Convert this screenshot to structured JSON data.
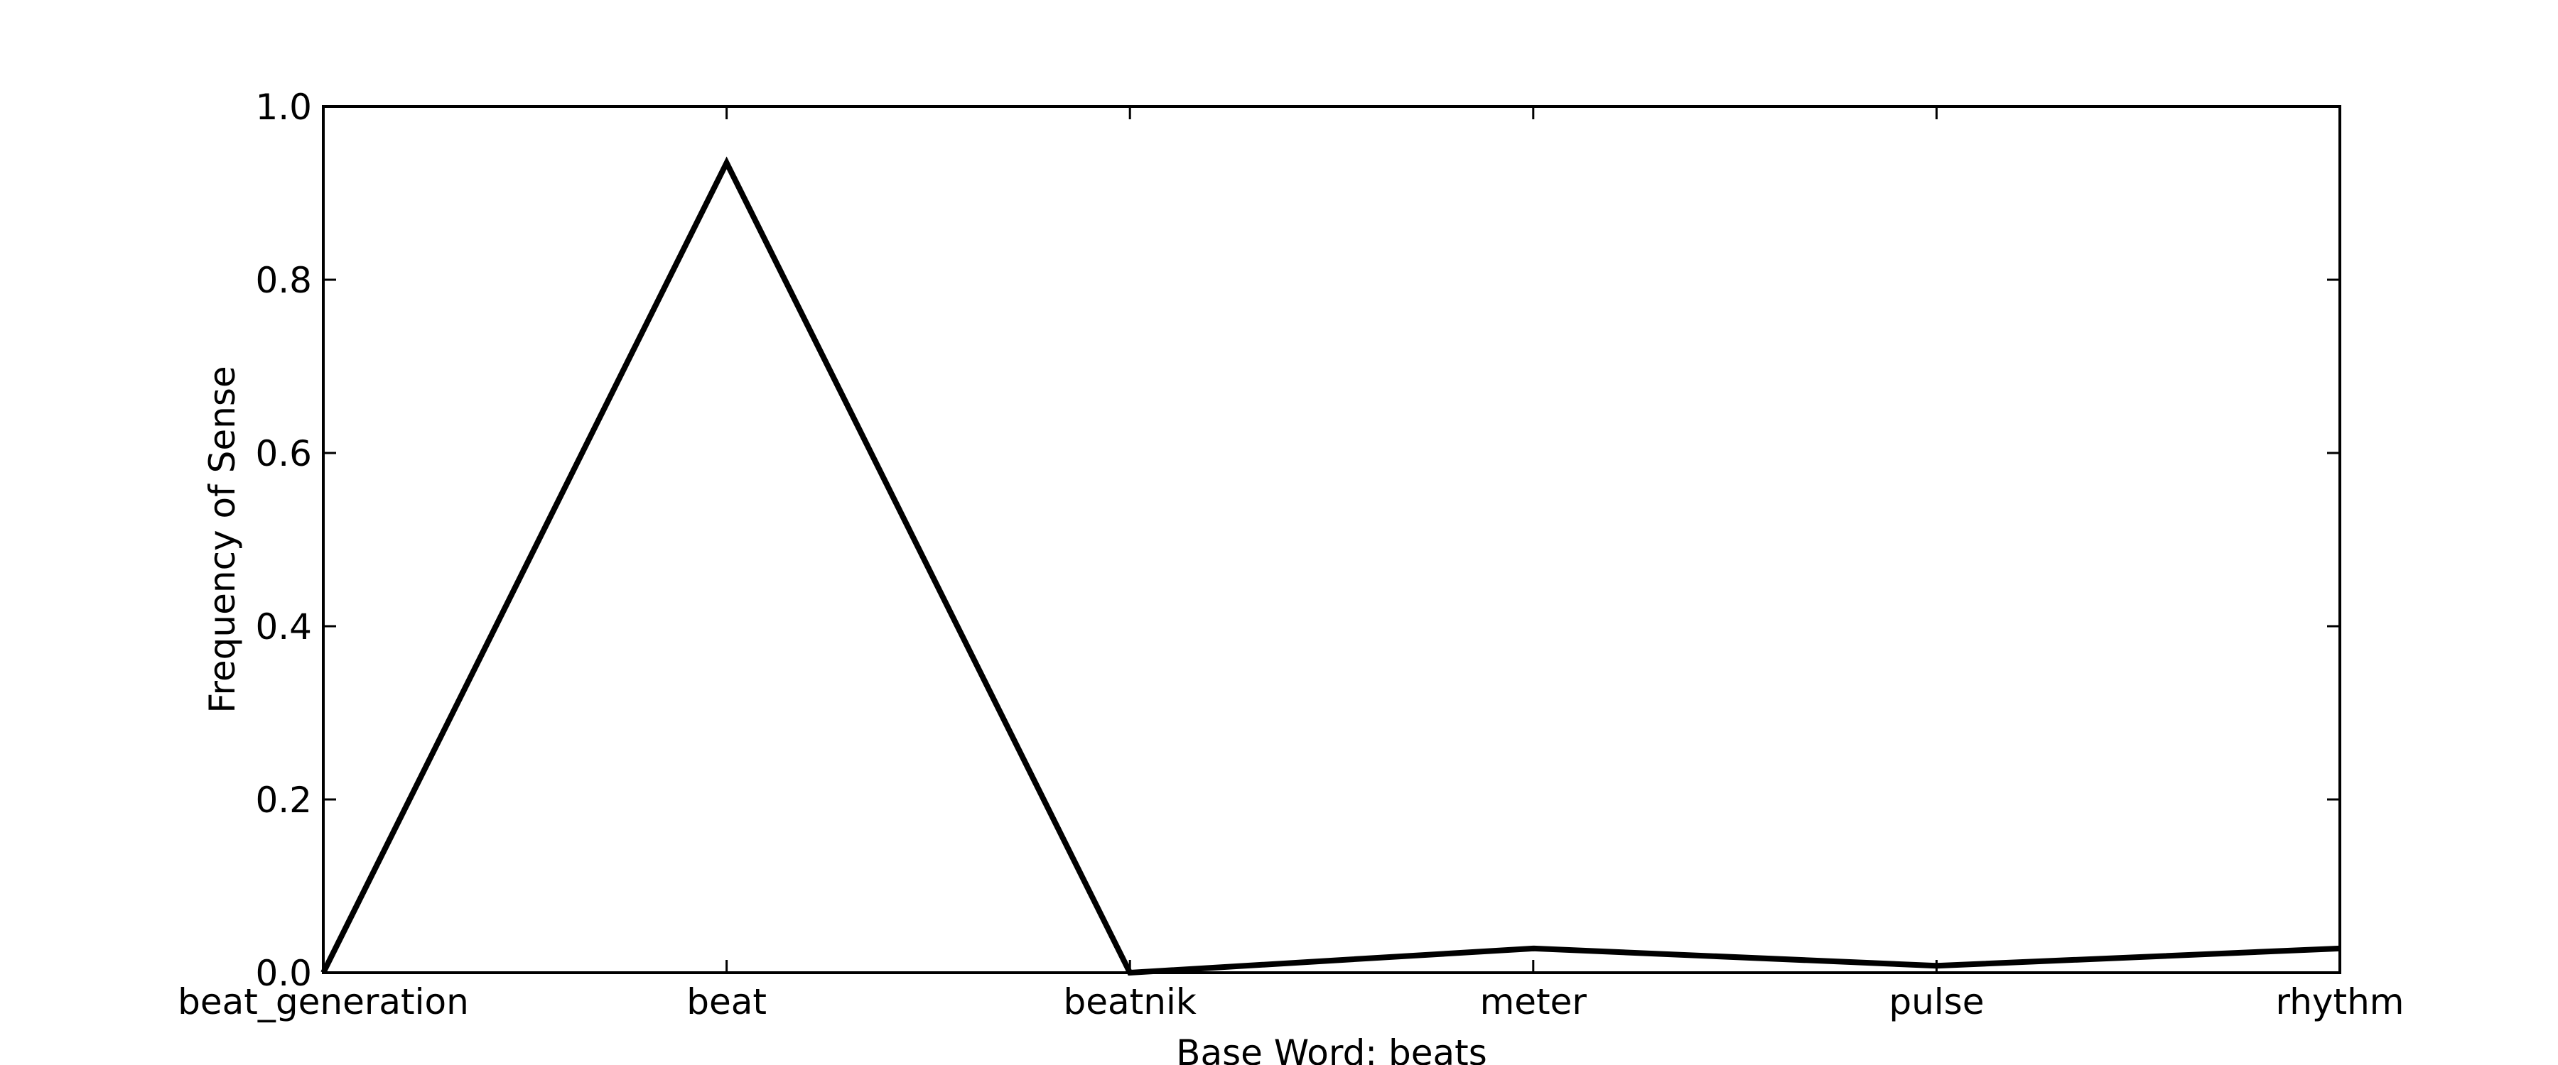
{
  "chart_data": {
    "type": "line",
    "title": "",
    "xlabel": "Base Word: beats",
    "ylabel": "Frequency of Sense",
    "categories": [
      "beat_generation",
      "beat",
      "beatnik",
      "meter",
      "pulse",
      "rhythm"
    ],
    "series": [
      {
        "values": [
          0.0,
          0.935,
          0.0,
          0.028,
          0.008,
          0.028
        ]
      }
    ],
    "ylim": [
      0.0,
      1.0
    ],
    "yticks": [
      0.0,
      0.2,
      0.4,
      0.6,
      0.8,
      1.0
    ],
    "ytick_labels": [
      "0.0",
      "0.2",
      "0.4",
      "0.6",
      "0.8",
      "1.0"
    ],
    "grid": false,
    "legend": "none",
    "colors": {
      "line": "#000000",
      "axes": "#000000",
      "background": "#ffffff"
    }
  }
}
